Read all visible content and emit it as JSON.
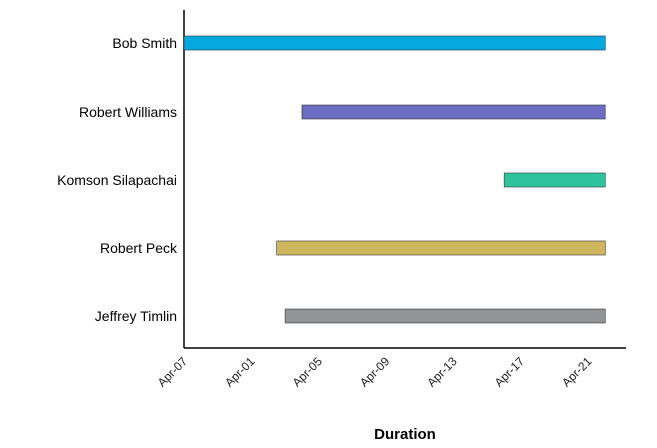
{
  "chart_data": {
    "type": "bar",
    "orientation": "horizontal",
    "title": "",
    "xlabel": "Duration",
    "ylabel": "",
    "x_ticks": [
      "Apr-07",
      "Apr-01",
      "Apr-05",
      "Apr-09",
      "Apr-13",
      "Apr-17",
      "Apr-21"
    ],
    "xlim": [
      "Apr-07",
      "Apr-22"
    ],
    "grid": false,
    "bars": [
      {
        "category": "Bob Smith",
        "start": "Apr-07",
        "end": "Apr-22",
        "color": "#06a8e0"
      },
      {
        "category": "Robert Williams",
        "start": "Apr-04",
        "end": "Apr-22",
        "color": "#6b6bbf"
      },
      {
        "category": "Komson Silapachai",
        "start": "Apr-16",
        "end": "Apr-22",
        "color": "#2ec39c"
      },
      {
        "category": "Robert Peck",
        "start": "Apr-02.5",
        "end": "Apr-22",
        "color": "#cfb760"
      },
      {
        "category": "Jeffrey Timlin",
        "start": "Apr-03",
        "end": "Apr-22",
        "color": "#929498"
      }
    ]
  }
}
